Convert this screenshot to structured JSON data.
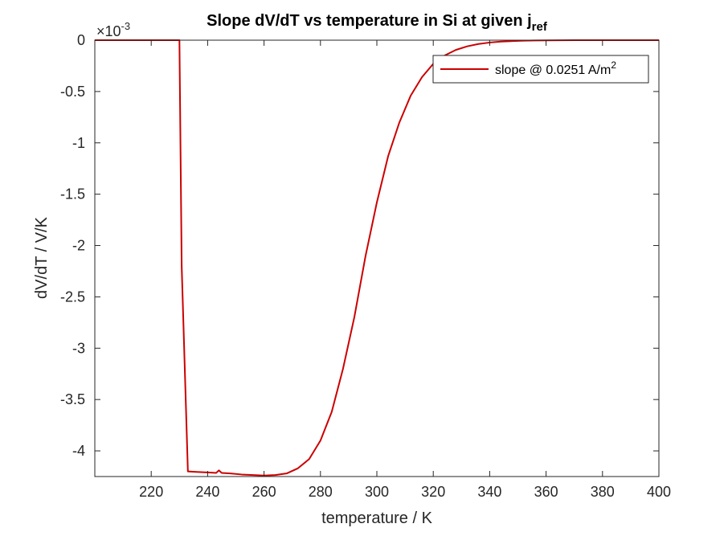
{
  "chart_data": {
    "type": "line",
    "title": "Slope dV/dT vs temperature in Si at given j",
    "title_subscript": "ref",
    "xlabel": "temperature / K",
    "ylabel": "dV/dT / V/K",
    "y_exponent_base": "×10",
    "y_exponent_power": "-3",
    "y_scale": 0.001,
    "xlim": [
      200,
      400
    ],
    "ylim": [
      -4.25,
      0
    ],
    "xticks": [
      220,
      240,
      260,
      280,
      300,
      320,
      340,
      360,
      380,
      400
    ],
    "yticks": [
      0,
      -0.5,
      -1,
      -1.5,
      -2,
      -2.5,
      -3,
      -3.5,
      -4
    ],
    "grid": false,
    "legend_position": "top-right",
    "series": [
      {
        "name": "slope @ 0.0251 A/m",
        "name_superscript": "2",
        "color": "#cc0000",
        "x": [
          200,
          230,
          230.8,
          233,
          236,
          240,
          243,
          244,
          245,
          248,
          252,
          256,
          260,
          264,
          268,
          272,
          276,
          280,
          284,
          288,
          292,
          296,
          300,
          304,
          308,
          312,
          316,
          320,
          324,
          328,
          332,
          336,
          340,
          344,
          348,
          352,
          356,
          360,
          370,
          380,
          390,
          400
        ],
        "values": [
          0,
          0,
          -2.2,
          -4.2,
          -4.205,
          -4.21,
          -4.215,
          -4.19,
          -4.215,
          -4.22,
          -4.23,
          -4.235,
          -4.24,
          -4.235,
          -4.22,
          -4.17,
          -4.08,
          -3.9,
          -3.62,
          -3.2,
          -2.7,
          -2.1,
          -1.58,
          -1.13,
          -0.8,
          -0.54,
          -0.36,
          -0.23,
          -0.15,
          -0.095,
          -0.06,
          -0.037,
          -0.023,
          -0.014,
          -0.009,
          -0.005,
          -0.003,
          -0.002,
          -0.0005,
          -0.0001,
          0,
          0
        ]
      }
    ]
  }
}
